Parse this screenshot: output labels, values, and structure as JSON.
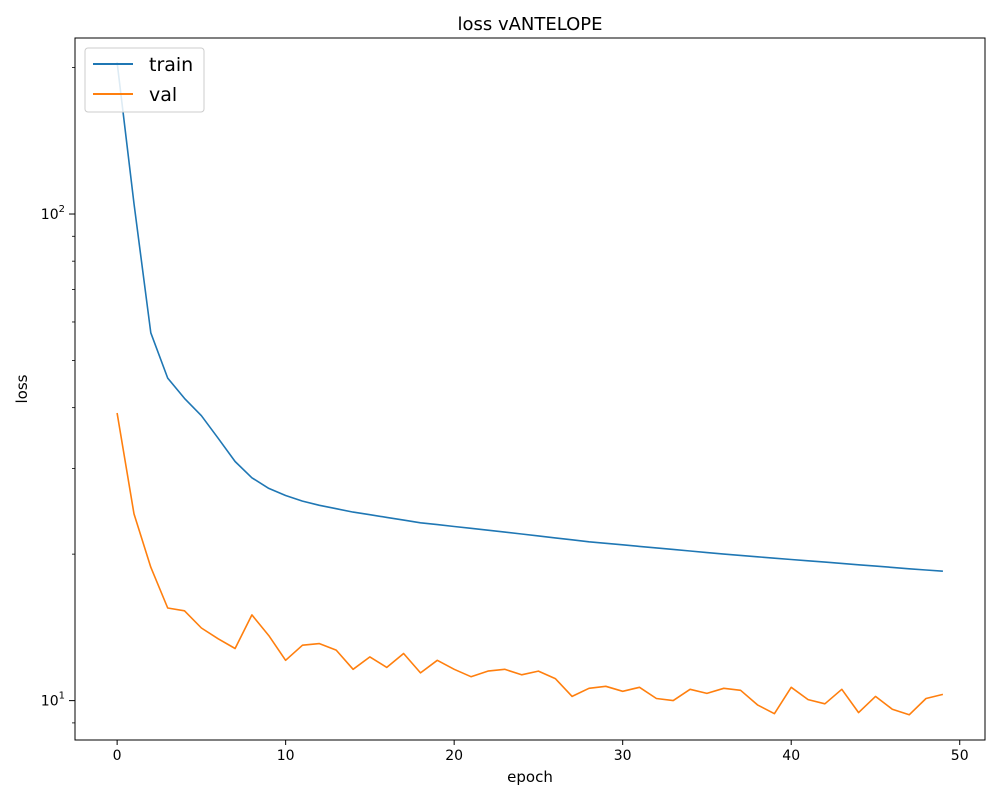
{
  "chart_data": {
    "type": "line",
    "title": "loss vANTELOPE",
    "xlabel": "epoch",
    "ylabel": "loss",
    "yscale": "log",
    "xlim": [
      -2.5,
      51.5
    ],
    "ylim": [
      8.3,
      230
    ],
    "x_ticks": [
      0,
      10,
      20,
      30,
      40,
      50
    ],
    "y_ticks": [
      {
        "value": 10,
        "base": "10",
        "exp": "1"
      },
      {
        "value": 100,
        "base": "10",
        "exp": "2"
      }
    ],
    "legend_position": "top-left",
    "grid": false,
    "x": [
      0,
      1,
      2,
      3,
      4,
      5,
      6,
      7,
      8,
      9,
      10,
      11,
      12,
      13,
      14,
      15,
      16,
      17,
      18,
      19,
      20,
      21,
      22,
      23,
      24,
      25,
      26,
      27,
      28,
      29,
      30,
      31,
      32,
      33,
      34,
      35,
      36,
      37,
      38,
      39,
      40,
      41,
      42,
      43,
      44,
      45,
      46,
      47,
      48,
      49
    ],
    "series": [
      {
        "name": "train",
        "color": "#1f77b4",
        "values": [
          205,
          105,
          57,
          46,
          41.8,
          38.5,
          34.6,
          31,
          28.7,
          27.3,
          26.4,
          25.7,
          25.2,
          24.8,
          24.4,
          24.1,
          23.8,
          23.5,
          23.2,
          23,
          22.8,
          22.6,
          22.4,
          22.2,
          22,
          21.8,
          21.6,
          21.4,
          21.2,
          21.05,
          20.9,
          20.75,
          20.6,
          20.45,
          20.3,
          20.15,
          20,
          19.88,
          19.75,
          19.62,
          19.5,
          19.38,
          19.26,
          19.14,
          19.02,
          18.9,
          18.78,
          18.66,
          18.55,
          18.45
        ]
      },
      {
        "name": "val",
        "color": "#ff7f0e",
        "values": [
          39,
          24.2,
          18.8,
          15.5,
          15.3,
          14.1,
          13.4,
          12.8,
          15,
          13.6,
          12.1,
          13,
          13.1,
          12.7,
          11.6,
          12.3,
          11.7,
          12.5,
          11.4,
          12.1,
          11.6,
          11.2,
          11.5,
          11.6,
          11.3,
          11.5,
          11.1,
          10.2,
          10.6,
          10.7,
          10.45,
          10.65,
          10.1,
          10,
          10.55,
          10.35,
          10.6,
          10.5,
          9.8,
          9.4,
          10.65,
          10.05,
          9.85,
          10.55,
          9.45,
          10.2,
          9.6,
          9.35,
          10.1,
          10.3
        ]
      }
    ]
  }
}
